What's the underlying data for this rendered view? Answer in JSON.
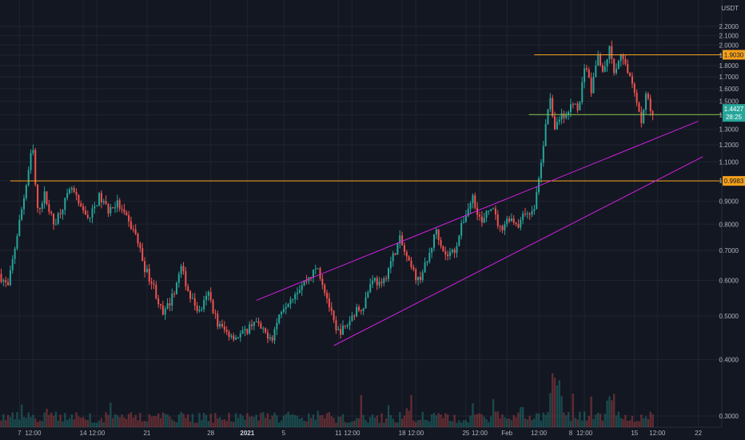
{
  "chart_data": {
    "type": "candlestick",
    "currency": "USDT",
    "y_scale": "log",
    "ylim": [
      0.28,
      2.35
    ],
    "y_ticks": [
      "0.3000",
      "0.4000",
      "0.5000",
      "0.6000",
      "0.7000",
      "0.8000",
      "0.9000",
      "1.0000",
      "1.1000",
      "1.2000",
      "1.3000",
      "1.4000",
      "1.5000",
      "1.6000",
      "1.7000",
      "1.8000",
      "1.9000",
      "2.0000",
      "2.1000",
      "2.2000"
    ],
    "x_ticks": [
      {
        "label": "7",
        "t": 2
      },
      {
        "label": "12:00",
        "t": 3.5
      },
      {
        "label": "14",
        "t": 9
      },
      {
        "label": "12:00",
        "t": 10.5
      },
      {
        "label": "21",
        "t": 16
      },
      {
        "label": "28",
        "t": 23
      },
      {
        "label": "2021",
        "t": 27,
        "bold": true
      },
      {
        "label": "5",
        "t": 31
      },
      {
        "label": "11",
        "t": 37
      },
      {
        "label": "12:00",
        "t": 38.5
      },
      {
        "label": "18",
        "t": 44
      },
      {
        "label": "12:00",
        "t": 45.5
      },
      {
        "label": "25",
        "t": 51
      },
      {
        "label": "12:00",
        "t": 52.5
      },
      {
        "label": "Feb",
        "t": 55.5
      },
      {
        "label": "12:00",
        "t": 59
      },
      {
        "label": "8",
        "t": 62.5
      },
      {
        "label": "12:00",
        "t": 64
      },
      {
        "label": "15",
        "t": 69.5
      },
      {
        "label": "12:00",
        "t": 72
      },
      {
        "label": "22",
        "t": 76.5
      }
    ],
    "price_path": [
      [
        0,
        0.62
      ],
      [
        1,
        0.58
      ],
      [
        2,
        0.76
      ],
      [
        3,
        0.98
      ],
      [
        3.7,
        1.2
      ],
      [
        4.2,
        0.85
      ],
      [
        5,
        0.93
      ],
      [
        6,
        0.8
      ],
      [
        7,
        0.88
      ],
      [
        8,
        0.96
      ],
      [
        9,
        0.86
      ],
      [
        10,
        0.83
      ],
      [
        11,
        0.92
      ],
      [
        12,
        0.86
      ],
      [
        13,
        0.89
      ],
      [
        14,
        0.82
      ],
      [
        15,
        0.76
      ],
      [
        16,
        0.64
      ],
      [
        17,
        0.58
      ],
      [
        18,
        0.5
      ],
      [
        19,
        0.55
      ],
      [
        20,
        0.64
      ],
      [
        21,
        0.55
      ],
      [
        22,
        0.51
      ],
      [
        23,
        0.56
      ],
      [
        24,
        0.48
      ],
      [
        25,
        0.46
      ],
      [
        26,
        0.45
      ],
      [
        27,
        0.46
      ],
      [
        28,
        0.49
      ],
      [
        29,
        0.46
      ],
      [
        30,
        0.45
      ],
      [
        31,
        0.52
      ],
      [
        32,
        0.55
      ],
      [
        33,
        0.58
      ],
      [
        34,
        0.61
      ],
      [
        35,
        0.64
      ],
      [
        36,
        0.55
      ],
      [
        37,
        0.46
      ],
      [
        38,
        0.47
      ],
      [
        39,
        0.51
      ],
      [
        40,
        0.53
      ],
      [
        41,
        0.61
      ],
      [
        42,
        0.58
      ],
      [
        43,
        0.66
      ],
      [
        44,
        0.74
      ],
      [
        45,
        0.65
      ],
      [
        46,
        0.6
      ],
      [
        47,
        0.66
      ],
      [
        48,
        0.78
      ],
      [
        49,
        0.68
      ],
      [
        50,
        0.7
      ],
      [
        51,
        0.82
      ],
      [
        52,
        0.92
      ],
      [
        53,
        0.8
      ],
      [
        54,
        0.88
      ],
      [
        55,
        0.78
      ],
      [
        56,
        0.83
      ],
      [
        57,
        0.8
      ],
      [
        58,
        0.86
      ],
      [
        58.6,
        0.84
      ],
      [
        59.4,
        1.05
      ],
      [
        60,
        1.32
      ],
      [
        60.5,
        1.55
      ],
      [
        61,
        1.3
      ],
      [
        61.7,
        1.42
      ],
      [
        62.3,
        1.38
      ],
      [
        63,
        1.5
      ],
      [
        63.7,
        1.45
      ],
      [
        64.3,
        1.85
      ],
      [
        65,
        1.58
      ],
      [
        65.7,
        1.9
      ],
      [
        66.4,
        1.72
      ],
      [
        67,
        1.95
      ],
      [
        67.6,
        1.7
      ],
      [
        68.2,
        1.88
      ],
      [
        68.8,
        1.82
      ],
      [
        69.5,
        1.65
      ],
      [
        70,
        1.52
      ],
      [
        70.5,
        1.34
      ],
      [
        71,
        1.58
      ],
      [
        71.5,
        1.42
      ]
    ],
    "volume_spikes": [
      {
        "t": 60.5,
        "v": 6
      },
      {
        "t": 61.2,
        "v": 4
      },
      {
        "t": 66.8,
        "v": 3
      }
    ],
    "horizontal_levels": [
      {
        "name": "resistance-level",
        "price": 1.903,
        "t_start": 58.5,
        "t_end": 81,
        "label": "1.9030",
        "color": "#f7a21b"
      },
      {
        "name": "support-level-upper",
        "price": 1.4015,
        "t_start": 57.9,
        "t_end": 81,
        "label": "1.4015",
        "color": "#8bc34a"
      },
      {
        "name": "support-level-lower",
        "price": 0.9983,
        "t_start": 1,
        "t_end": 81,
        "label": "0.9983",
        "color": "#f7a21b"
      }
    ],
    "trend_lines": [
      {
        "name": "channel-upper-line",
        "p1": [
          28,
          0.542
        ],
        "p2": [
          76.5,
          1.355
        ],
        "color": "#d31fe0"
      },
      {
        "name": "channel-lower-line",
        "p1": [
          36.5,
          0.43
        ],
        "p2": [
          77,
          1.13
        ],
        "color": "#d31fe0"
      }
    ],
    "last_price": {
      "price": 1.4427,
      "label": "1.4427",
      "countdown": "28:25",
      "color": "#26a69a"
    },
    "colors": {
      "background": "#131722",
      "up": "#26a69a",
      "down": "#ef5350",
      "grid": "#1f2430",
      "axis_text": "#b2b5be"
    }
  }
}
